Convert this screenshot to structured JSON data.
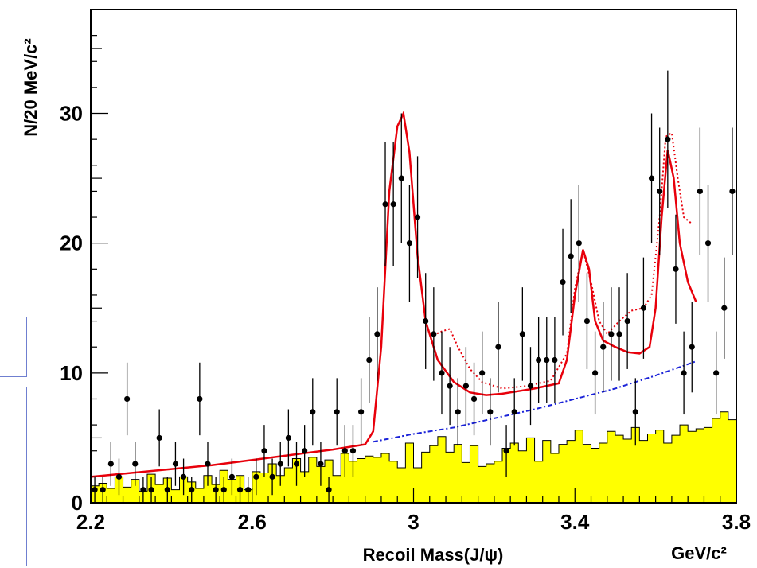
{
  "chart_data": {
    "type": "scatter",
    "title": "",
    "xlabel": "Recoil Mass(J/ψ)",
    "xunit": "GeV/c²",
    "ylabel": "N/20 MeV/c²",
    "xlim": [
      2.2,
      3.8
    ],
    "ylim": [
      0,
      38
    ],
    "xticks": [
      2.2,
      2.6,
      3.0,
      3.4,
      3.8
    ],
    "xtick_labels": [
      "2.2",
      "2.6",
      "3",
      "3.4",
      "3.8"
    ],
    "yticks": [
      0,
      10,
      20,
      30
    ],
    "ytick_labels": [
      "0",
      "10",
      "20",
      "30"
    ],
    "grid": false,
    "colors": {
      "data": "#000000",
      "fit": "#e8000b",
      "background": "#1a22d8",
      "histogram": "#ffff00"
    },
    "data_points": {
      "x": [
        2.21,
        2.23,
        2.25,
        2.27,
        2.29,
        2.31,
        2.33,
        2.35,
        2.37,
        2.39,
        2.41,
        2.43,
        2.45,
        2.47,
        2.49,
        2.51,
        2.53,
        2.55,
        2.57,
        2.59,
        2.61,
        2.63,
        2.65,
        2.67,
        2.69,
        2.71,
        2.73,
        2.75,
        2.77,
        2.79,
        2.81,
        2.83,
        2.85,
        2.87,
        2.89,
        2.91,
        2.93,
        2.95,
        2.97,
        2.99,
        3.01,
        3.03,
        3.05,
        3.07,
        3.09,
        3.11,
        3.13,
        3.15,
        3.17,
        3.19,
        3.21,
        3.23,
        3.25,
        3.27,
        3.29,
        3.31,
        3.33,
        3.35,
        3.37,
        3.39,
        3.41,
        3.43,
        3.45,
        3.47,
        3.49,
        3.51,
        3.53,
        3.55,
        3.57,
        3.59,
        3.61,
        3.63,
        3.65,
        3.67,
        3.69,
        3.71,
        3.73,
        3.75,
        3.77,
        3.79
      ],
      "y": [
        1,
        1,
        3,
        2,
        8,
        3,
        1,
        1,
        5,
        1,
        3,
        2,
        1,
        8,
        3,
        1,
        1,
        2,
        1,
        1,
        2,
        4,
        2,
        3,
        5,
        3,
        4,
        7,
        3,
        1,
        7,
        4,
        4,
        7,
        11,
        13,
        23,
        23,
        25,
        20,
        22,
        14,
        13,
        10,
        9,
        7,
        9,
        8,
        10,
        7,
        12,
        4,
        7,
        13,
        9,
        11,
        11,
        11,
        17,
        19,
        20,
        14,
        10,
        12,
        13,
        13,
        14,
        7,
        15,
        25,
        24,
        28,
        18,
        10,
        12,
        24,
        20,
        10,
        15,
        24
      ],
      "errors": [
        1,
        1,
        1.7,
        1.4,
        2.8,
        1.7,
        1,
        1,
        2.2,
        1,
        1.7,
        1.4,
        1,
        2.8,
        1.7,
        1,
        1,
        1.4,
        1,
        1,
        1.4,
        2,
        1.4,
        1.7,
        2.2,
        1.7,
        2,
        2.6,
        1.7,
        1,
        2.6,
        2,
        2,
        2.6,
        3.3,
        3.6,
        4.8,
        4.8,
        5,
        4.5,
        4.7,
        3.7,
        3.6,
        3.2,
        3,
        2.6,
        3,
        2.8,
        3.2,
        2.6,
        3.5,
        2,
        2.6,
        3.6,
        3,
        3.3,
        3.3,
        3.3,
        4.1,
        4.4,
        4.5,
        3.7,
        3.2,
        3.5,
        3.6,
        3.6,
        3.7,
        2.6,
        3.9,
        5,
        4.9,
        5.3,
        4.2,
        3.2,
        3.5,
        4.9,
        4.5,
        3.2,
        3.9,
        4.9
      ]
    },
    "histogram": {
      "bin_width": 0.02,
      "bin_start": 2.2,
      "values": [
        1.3,
        1.5,
        1.1,
        2.0,
        1.2,
        1.8,
        0.9,
        2.2,
        1.4,
        1.9,
        1.0,
        2.0,
        1.6,
        1.1,
        2.1,
        1.4,
        2.5,
        1.8,
        2.1,
        1.0,
        2.4,
        2.3,
        3.0,
        2.1,
        2.7,
        3.4,
        2.4,
        3.5,
        2.8,
        3.3,
        2.1,
        3.8,
        3.2,
        3.4,
        3.6,
        3.5,
        3.8,
        3.2,
        2.7,
        4.6,
        2.7,
        3.9,
        4.4,
        5.1,
        3.9,
        4.5,
        3.1,
        4.4,
        2.8,
        3.0,
        3.2,
        4.2,
        4.6,
        4.0,
        5.0,
        3.2,
        4.8,
        3.8,
        4.5,
        4.8,
        5.6,
        4.5,
        4.2,
        4.6,
        5.5,
        5.2,
        4.9,
        5.8,
        4.8,
        5.3,
        5.6,
        4.6,
        5.2,
        6.0,
        5.5,
        5.7,
        5.8,
        6.5,
        7.0,
        6.4,
        5.8
      ]
    },
    "background_fit": {
      "x": [
        2.9,
        3.0,
        3.1,
        3.2,
        3.3,
        3.4,
        3.5,
        3.6,
        3.7
      ],
      "y": [
        4.7,
        5.3,
        5.8,
        6.5,
        7.2,
        8.0,
        8.8,
        9.8,
        10.9
      ]
    },
    "total_fit": {
      "x": [
        2.2,
        2.3,
        2.4,
        2.5,
        2.6,
        2.7,
        2.8,
        2.88,
        2.9,
        2.92,
        2.94,
        2.96,
        2.975,
        2.99,
        3.01,
        3.03,
        3.06,
        3.1,
        3.14,
        3.18,
        3.22,
        3.26,
        3.3,
        3.36,
        3.38,
        3.4,
        3.42,
        3.435,
        3.45,
        3.47,
        3.5,
        3.53,
        3.56,
        3.585,
        3.6,
        3.615,
        3.63,
        3.645,
        3.66,
        3.68,
        3.7
      ],
      "y": [
        2.0,
        2.3,
        2.6,
        2.9,
        3.3,
        3.7,
        4.1,
        4.5,
        5.5,
        12,
        24,
        29,
        30,
        27,
        19,
        14,
        11,
        9.3,
        8.5,
        8.3,
        8.4,
        8.6,
        8.8,
        9.2,
        11,
        16,
        19.5,
        18,
        14,
        12.5,
        12,
        11.6,
        11.5,
        12,
        15,
        22,
        27.2,
        25,
        20,
        17,
        15.5
      ]
    },
    "alt_fit": {
      "x": [
        3.04,
        3.07,
        3.09,
        3.11,
        3.14,
        3.17,
        3.22,
        3.28,
        3.34,
        3.38,
        3.4,
        3.42,
        3.44,
        3.46,
        3.48,
        3.51,
        3.54,
        3.57,
        3.59,
        3.61,
        3.625,
        3.64,
        3.655,
        3.67,
        3.69
      ],
      "y": [
        12.8,
        13.2,
        13.4,
        12,
        10.3,
        9.3,
        8.8,
        9,
        9.4,
        11.5,
        16.5,
        19.5,
        17,
        14,
        13,
        14,
        14.8,
        15,
        16,
        22,
        28.2,
        28.5,
        25,
        22,
        21.5
      ]
    }
  }
}
